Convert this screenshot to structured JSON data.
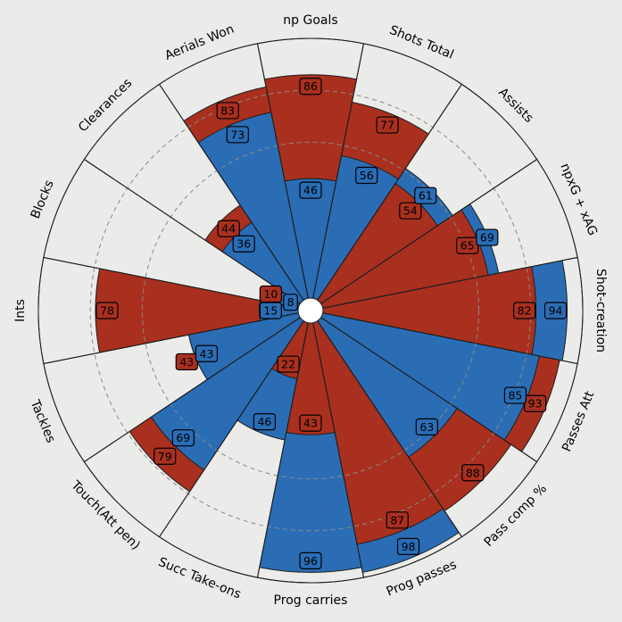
{
  "chart_data": {
    "type": "pizza",
    "params": [
      "np Goals",
      "Shots Total",
      "Assists",
      "npxG + xAG",
      "Shot-creation",
      "Passes Att",
      "Pass comp %",
      "Prog passes",
      "Prog carries",
      "Succ Take-ons",
      "Touch(Att pen)",
      "Tackles",
      "Ints",
      "Blocks",
      "Clearances",
      "Aerials Won"
    ],
    "series": [
      {
        "values": [
          86,
          77,
          54,
          65,
          82,
          93,
          88,
          87,
          43,
          22,
          79,
          43,
          78,
          10,
          44,
          83
        ]
      },
      {
        "values": [
          46,
          56,
          61,
          69,
          94,
          85,
          63,
          98,
          96,
          46,
          69,
          43,
          15,
          8,
          36,
          73
        ]
      }
    ],
    "range": [
      0,
      100
    ],
    "gridlines": [
      60,
      80
    ],
    "colors": {
      "series_a": "#a9301f",
      "series_b": "#2a6db5",
      "background": "#ebebe9",
      "edge": "#1e1e1e",
      "grid": "#8a8a8a"
    }
  }
}
